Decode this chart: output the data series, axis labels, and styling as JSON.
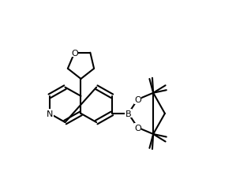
{
  "bg_color": "#ffffff",
  "line_color": "#000000",
  "line_width": 1.5,
  "font_size": 8,
  "atoms": {
    "N": {
      "label": "N"
    },
    "O": {
      "label": "O"
    },
    "B": {
      "label": "B"
    }
  }
}
